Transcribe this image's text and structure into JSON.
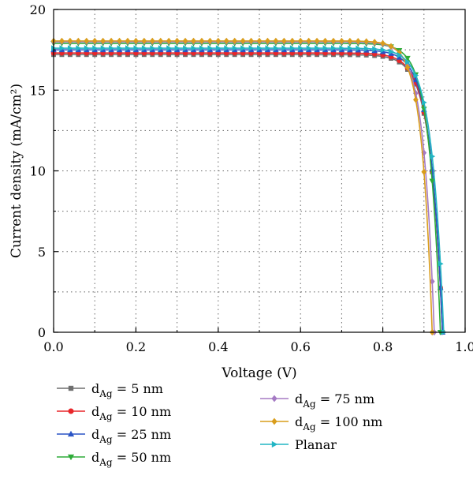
{
  "chart_data": {
    "type": "line",
    "xlabel": "Voltage (V)",
    "ylabel": "Current density (mA/cm²)",
    "xlim": [
      0.0,
      1.0
    ],
    "ylim": [
      0,
      20
    ],
    "xticks": [
      "0.0",
      "0.2",
      "0.4",
      "0.6",
      "0.8",
      "1.0"
    ],
    "yticks": [
      "0",
      "5",
      "10",
      "15",
      "20"
    ],
    "grid": "dotted",
    "legend_placement": "bottom",
    "series": [
      {
        "name_main": "d",
        "name_sub": "Ag",
        "name_rest": " = 5 nm",
        "color": "#6e6e6e",
        "marker": "square",
        "jsc": 17.2,
        "voc": 0.945,
        "n": 0.029
      },
      {
        "name_main": "d",
        "name_sub": "Ag",
        "name_rest": " = 10 nm",
        "color": "#e8262a",
        "marker": "circle",
        "jsc": 17.3,
        "voc": 0.945,
        "n": 0.029
      },
      {
        "name_main": "d",
        "name_sub": "Ag",
        "name_rest": " = 25 nm",
        "color": "#2a54c5",
        "marker": "triangle-up",
        "jsc": 17.5,
        "voc": 0.945,
        "n": 0.029
      },
      {
        "name_main": "d",
        "name_sub": "Ag",
        "name_rest": " = 50 nm",
        "color": "#2eab38",
        "marker": "triangle-down",
        "jsc": 17.9,
        "voc": 0.94,
        "n": 0.027
      },
      {
        "name_main": "d",
        "name_sub": "Ag",
        "name_rest": " = 75 nm",
        "color": "#a57ac4",
        "marker": "diamond",
        "jsc": 18.0,
        "voc": 0.925,
        "n": 0.026
      },
      {
        "name_main": "d",
        "name_sub": "Ag",
        "name_rest": " = 100 nm",
        "color": "#d99d1c",
        "marker": "diamond",
        "jsc": 18.05,
        "voc": 0.92,
        "n": 0.025
      },
      {
        "name_main": "Planar",
        "name_sub": "",
        "name_rest": "",
        "color": "#22b5c4",
        "marker": "triangle-right",
        "jsc": 17.6,
        "voc": 0.948,
        "n": 0.029
      }
    ]
  }
}
